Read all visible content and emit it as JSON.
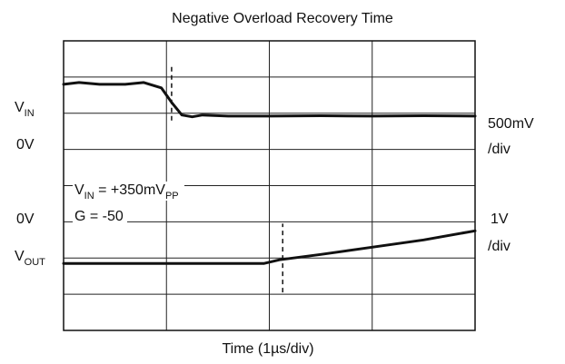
{
  "chart_data": {
    "type": "line",
    "title": "Negative Overload Recovery Time",
    "xlabel": "Time (1µs/div)",
    "xlim": [
      0,
      4
    ],
    "divisions": {
      "x": 4,
      "y": 8
    },
    "grid": true,
    "series": [
      {
        "name": "VIN",
        "scale": "500mV/div",
        "units": "div",
        "x": [
          0,
          0.15,
          0.35,
          0.6,
          0.78,
          0.95,
          1.05,
          1.15,
          1.25,
          1.35,
          1.6,
          2.0,
          2.5,
          3.0,
          3.5,
          4.0
        ],
        "values": [
          6.8,
          6.85,
          6.8,
          6.8,
          6.85,
          6.7,
          6.3,
          5.95,
          5.9,
          5.95,
          5.92,
          5.92,
          5.93,
          5.92,
          5.93,
          5.92
        ]
      },
      {
        "name": "VOUT",
        "scale": "1V/div",
        "units": "div",
        "x": [
          0,
          0.5,
          1.0,
          1.5,
          1.95,
          2.1,
          2.5,
          3.0,
          3.5,
          4.0
        ],
        "values": [
          1.85,
          1.85,
          1.85,
          1.85,
          1.85,
          1.95,
          2.1,
          2.3,
          2.5,
          2.75
        ]
      }
    ],
    "markers": [
      {
        "name": "vin-marker",
        "x": 1.05,
        "y_from": 5.8,
        "y_to": 7.3
      },
      {
        "name": "vout-marker",
        "x": 2.13,
        "y_from": 1.05,
        "y_to": 2.95
      }
    ],
    "labels": {
      "left": {
        "vin_main": "V",
        "vin_sub": "IN",
        "zero_top": "0V",
        "zero_bottom": "0V",
        "vout_main": "V",
        "vout_sub": "OUT"
      },
      "right": {
        "top_scale": "500mV",
        "top_div": "/div",
        "bottom_scale": "1V",
        "bottom_div": "/div"
      },
      "annotation": {
        "line1_main": "V",
        "line1_sub": "IN",
        "line1_mid": " = +350mV",
        "line1_sub2": "PP",
        "line2": "G = -50"
      }
    }
  }
}
